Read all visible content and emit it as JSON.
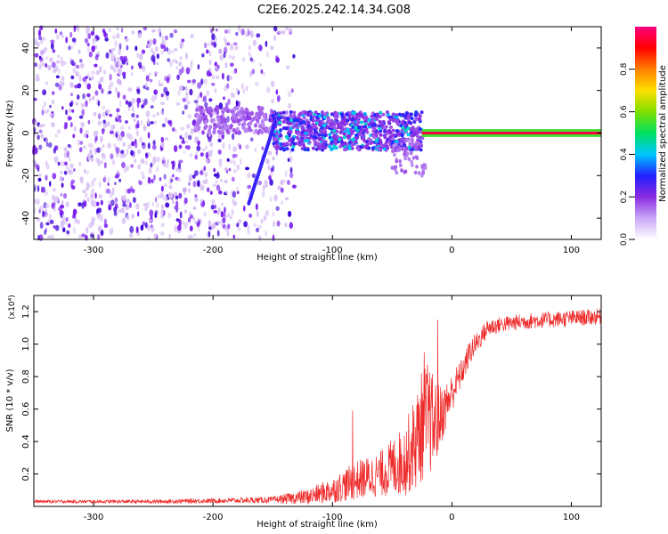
{
  "figure_title": "C2E6.2025.242.14.34.G08",
  "colors": {
    "snr_line": "#ee2a2a",
    "axis": "#000000",
    "spectrogram_faint": "#d9c2f5",
    "spectrogram_mid": "#7a1ff0",
    "spectrogram_strong": "#3a00d8"
  },
  "chart_data": [
    {
      "id": "spectrogram",
      "type": "heatmap",
      "title": "",
      "xlabel": "Height of straight line (km)",
      "ylabel": "Frequency (Hz)",
      "xlim": [
        -350,
        125
      ],
      "ylim": [
        -50,
        50
      ],
      "x_ticks": [
        -300,
        -200,
        -100,
        0,
        100
      ],
      "x_tick_labels": [
        "-300",
        "-200",
        "-100",
        "0",
        "100"
      ],
      "y_ticks": [
        -40,
        -20,
        0,
        20,
        40
      ],
      "y_tick_labels": [
        "-40",
        "-20",
        "0",
        "20",
        "40"
      ],
      "colorbar": {
        "label": "Normalized spectral amplitude",
        "range": [
          0,
          1
        ],
        "ticks": [
          0.0,
          0.2,
          0.4,
          0.6,
          0.8
        ],
        "tick_labels": [
          "0.0",
          "0.2",
          "0.4",
          "0.6",
          "0.8"
        ],
        "colormap": [
          "#ffffff",
          "#c9a6f7",
          "#8a2be2",
          "#2020ff",
          "#00c8ff",
          "#00e060",
          "#80e000",
          "#ffe000",
          "#ff8000",
          "#ff0000",
          "#ff007f"
        ]
      },
      "features": [
        {
          "name": "noise region",
          "x_range": [
            -350,
            -130
          ],
          "f_range": [
            -50,
            50
          ],
          "amplitude": 0.05
        },
        {
          "name": "onset cluster",
          "x_range": [
            -215,
            -150
          ],
          "f_range": [
            0,
            12
          ],
          "amplitude": 0.12
        },
        {
          "name": "chirp track",
          "x_range": [
            -170,
            -148
          ],
          "f_range": [
            -33,
            5
          ],
          "amplitude": 0.25
        },
        {
          "name": "main signal band",
          "x_range": [
            -150,
            -25
          ],
          "f_range": [
            -8,
            10
          ],
          "amplitude": 0.3
        },
        {
          "name": "lower tail",
          "x_range": [
            -50,
            -22
          ],
          "f_range": [
            -20,
            -2
          ],
          "amplitude": 0.12
        },
        {
          "name": "carrier line",
          "x_range": [
            -25,
            125
          ],
          "f_range": [
            -1,
            1
          ],
          "amplitude": 0.95
        }
      ]
    },
    {
      "id": "snr",
      "type": "line",
      "title": "",
      "xlabel": "Height of straight line (km)",
      "ylabel": "SNR (10 * v/v)",
      "y_multiplier": "(x10⁴)",
      "xlim": [
        -350,
        125
      ],
      "ylim": [
        0,
        1.3
      ],
      "x_ticks": [
        -300,
        -200,
        -100,
        0,
        100
      ],
      "x_tick_labels": [
        "-300",
        "-200",
        "-100",
        "0",
        "100"
      ],
      "y_ticks": [
        0.2,
        0.4,
        0.6,
        0.8,
        1.0,
        1.2
      ],
      "y_tick_labels": [
        "0.2",
        "0.4",
        "0.6",
        "0.8",
        "1.0",
        "1.2"
      ],
      "series": [
        {
          "name": "SNR",
          "x": [
            -350,
            -300,
            -250,
            -200,
            -150,
            -120,
            -100,
            -80,
            -60,
            -40,
            -30,
            -25,
            -20,
            -15,
            -10,
            -5,
            0,
            5,
            10,
            15,
            20,
            25,
            30,
            40,
            60,
            80,
            100,
            125
          ],
          "mean": [
            0.03,
            0.03,
            0.03,
            0.035,
            0.04,
            0.06,
            0.1,
            0.16,
            0.2,
            0.28,
            0.4,
            0.5,
            0.55,
            0.5,
            0.55,
            0.62,
            0.7,
            0.78,
            0.85,
            0.95,
            1.0,
            1.05,
            1.1,
            1.12,
            1.14,
            1.15,
            1.16,
            1.17
          ],
          "spread": [
            0.01,
            0.01,
            0.012,
            0.015,
            0.02,
            0.05,
            0.08,
            0.12,
            0.14,
            0.22,
            0.3,
            0.35,
            0.35,
            0.3,
            0.2,
            0.15,
            0.12,
            0.1,
            0.08,
            0.08,
            0.07,
            0.06,
            0.06,
            0.05,
            0.05,
            0.05,
            0.05,
            0.05
          ],
          "peaks": [
            {
              "x": -83,
              "y": 0.59
            },
            {
              "x": -23,
              "y": 0.95
            },
            {
              "x": -12,
              "y": 1.15
            }
          ]
        }
      ]
    }
  ]
}
